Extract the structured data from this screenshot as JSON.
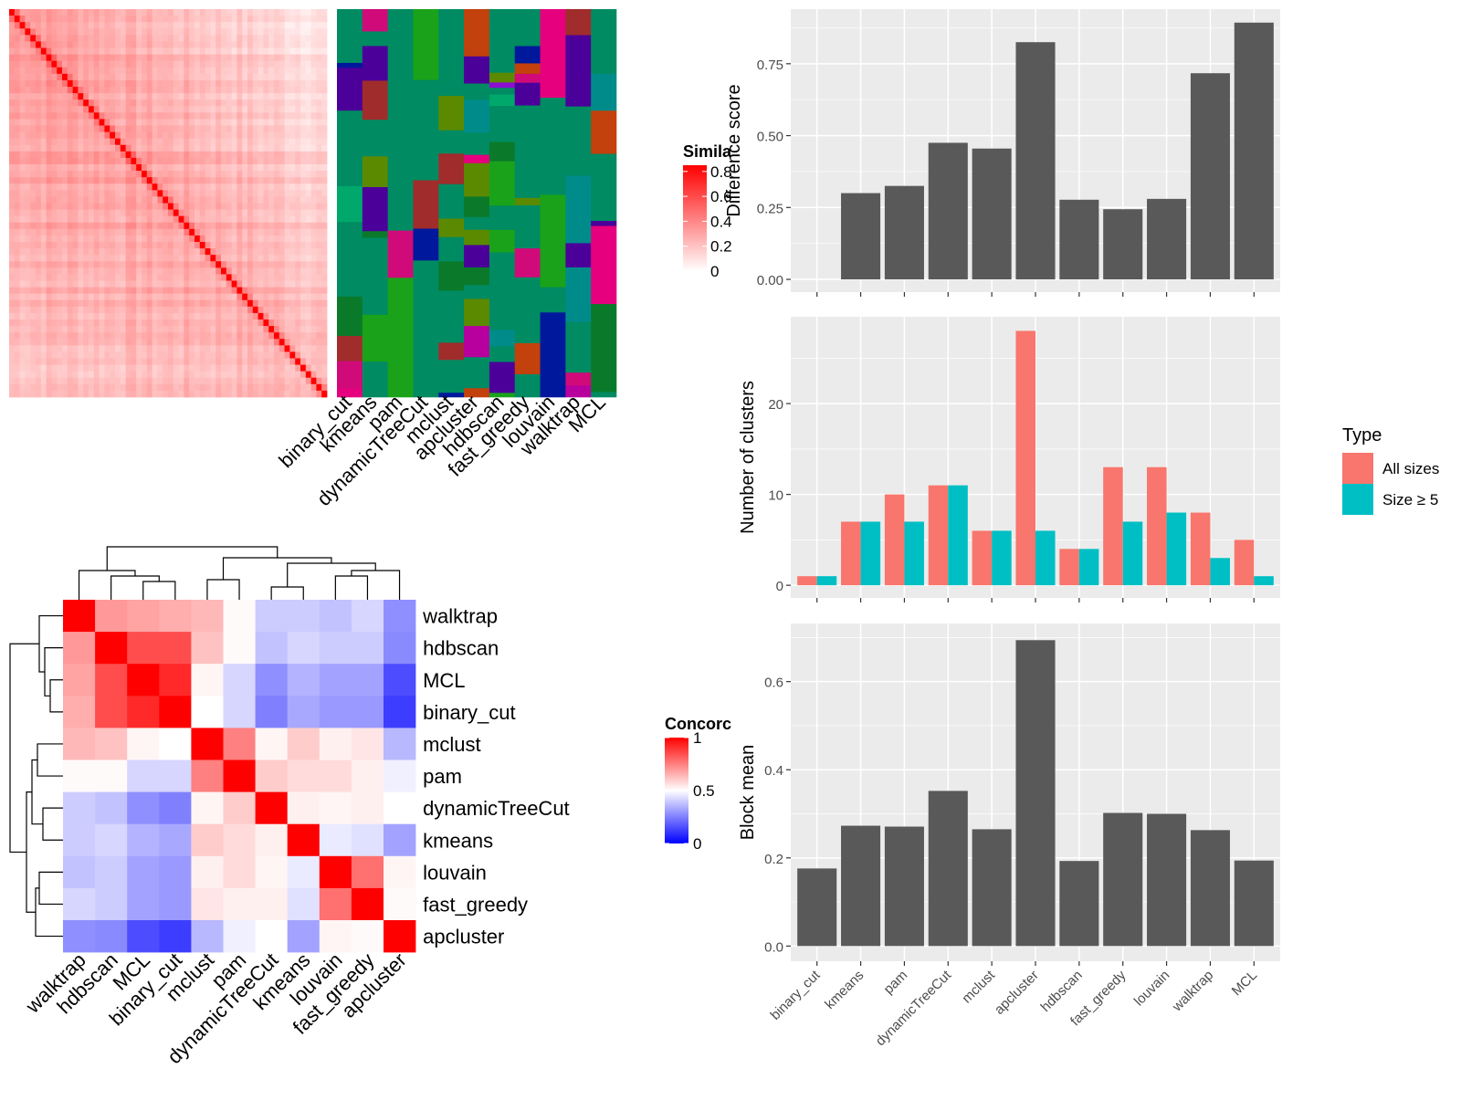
{
  "colors": {
    "panel_bg": "#ebebeb",
    "grid": "#ffffff",
    "bar_gray": "#595959",
    "all_sizes": "#f8766d",
    "size_ge5": "#00bfc4",
    "sim_high": "#ff0000",
    "sim_low": "#ffffff",
    "conc_high": "#ff0000",
    "conc_mid": "#ffffff",
    "conc_low": "#0000ff",
    "cluster_base": "#008b62"
  },
  "cluster_palette": [
    "#008b62",
    "#5b8a00",
    "#c2410c",
    "#e6007e",
    "#4b0099",
    "#0a7a2a",
    "#00a86b",
    "#b8009e",
    "#00189c",
    "#008b8b",
    "#1aa21a",
    "#a02c2c",
    "#8a0fcf",
    "#d10a7a"
  ],
  "similarity_heatmap": {
    "legend_title": "Simila",
    "legend_ticks": [
      "0.8",
      "0.6",
      "0.4",
      "0.2",
      "0"
    ],
    "legend_tick_values": [
      0.8,
      0.6,
      0.4,
      0.2,
      0.0
    ],
    "legend_range": [
      0,
      0.85
    ],
    "method_labels": [
      "binary_cut",
      "kmeans",
      "pam",
      "dynamicTreeCut",
      "mclust",
      "apcluster",
      "hdbscan",
      "fast_greedy",
      "louvain",
      "walktrap",
      "MCL"
    ]
  },
  "concordance_heatmap": {
    "legend_title": "Concorc",
    "legend_ticks": [
      "1",
      "0.5",
      "0"
    ],
    "legend_tick_values": [
      1,
      0.5,
      0
    ],
    "methods": [
      "walktrap",
      "hdbscan",
      "MCL",
      "binary_cut",
      "mclust",
      "pam",
      "dynamicTreeCut",
      "kmeans",
      "louvain",
      "fast_greedy",
      "apcluster"
    ],
    "matrix": [
      [
        1.0,
        0.7,
        0.68,
        0.66,
        0.64,
        0.51,
        0.4,
        0.4,
        0.38,
        0.42,
        0.28
      ],
      [
        0.7,
        1.0,
        0.85,
        0.85,
        0.62,
        0.51,
        0.38,
        0.42,
        0.4,
        0.4,
        0.27
      ],
      [
        0.68,
        0.85,
        1.0,
        0.92,
        0.52,
        0.42,
        0.28,
        0.35,
        0.32,
        0.32,
        0.15
      ],
      [
        0.66,
        0.85,
        0.92,
        1.0,
        0.5,
        0.42,
        0.25,
        0.33,
        0.3,
        0.3,
        0.12
      ],
      [
        0.64,
        0.62,
        0.52,
        0.5,
        1.0,
        0.75,
        0.52,
        0.6,
        0.53,
        0.55,
        0.36
      ],
      [
        0.51,
        0.51,
        0.42,
        0.42,
        0.75,
        1.0,
        0.6,
        0.57,
        0.57,
        0.53,
        0.47
      ],
      [
        0.4,
        0.38,
        0.28,
        0.25,
        0.52,
        0.6,
        1.0,
        0.53,
        0.52,
        0.53,
        0.5
      ],
      [
        0.4,
        0.42,
        0.35,
        0.33,
        0.6,
        0.57,
        0.53,
        1.0,
        0.46,
        0.44,
        0.32
      ],
      [
        0.38,
        0.4,
        0.32,
        0.3,
        0.53,
        0.57,
        0.52,
        0.46,
        1.0,
        0.78,
        0.52
      ],
      [
        0.42,
        0.4,
        0.32,
        0.3,
        0.55,
        0.53,
        0.53,
        0.44,
        0.78,
        1.0,
        0.51
      ],
      [
        0.28,
        0.27,
        0.15,
        0.12,
        0.36,
        0.47,
        0.5,
        0.32,
        0.52,
        0.51,
        1.0
      ]
    ]
  },
  "chart_data": [
    {
      "type": "bar",
      "ylabel": "Difference score",
      "categories": [
        "binary_cut",
        "kmeans",
        "pam",
        "dynamicTreeCut",
        "mclust",
        "apcluster",
        "hdbscan",
        "fast_greedy",
        "louvain",
        "walktrap",
        "MCL"
      ],
      "values": [
        0,
        0.3,
        0.325,
        0.475,
        0.455,
        0.825,
        0.277,
        0.244,
        0.28,
        0.717,
        0.893
      ],
      "ylim": [
        0,
        0.935
      ],
      "y_ticks": [
        0.0,
        0.25,
        0.5,
        0.75
      ],
      "y_tick_labels": [
        "0.00",
        "0.25",
        "0.50",
        "0.75"
      ]
    },
    {
      "type": "bar",
      "ylabel": "Number of clusters",
      "categories": [
        "binary_cut",
        "kmeans",
        "pam",
        "dynamicTreeCut",
        "mclust",
        "apcluster",
        "hdbscan",
        "fast_greedy",
        "louvain",
        "walktrap",
        "MCL"
      ],
      "legend": {
        "title": "Type",
        "position": "right"
      },
      "series": [
        {
          "name": "All sizes",
          "values": [
            1,
            7,
            10,
            11,
            6,
            28,
            4,
            13,
            13,
            8,
            5
          ]
        },
        {
          "name": "Size ≥ 5",
          "values": [
            1,
            7,
            7,
            11,
            6,
            6,
            4,
            7,
            8,
            3,
            1
          ]
        }
      ],
      "ylim": [
        0,
        29.4
      ],
      "y_ticks": [
        0,
        10,
        20
      ],
      "y_tick_labels": [
        "0",
        "10",
        "20"
      ]
    },
    {
      "type": "bar",
      "ylabel": "Block mean",
      "categories": [
        "binary_cut",
        "kmeans",
        "pam",
        "dynamicTreeCut",
        "mclust",
        "apcluster",
        "hdbscan",
        "fast_greedy",
        "louvain",
        "walktrap",
        "MCL"
      ],
      "values": [
        0.176,
        0.273,
        0.271,
        0.352,
        0.265,
        0.694,
        0.193,
        0.302,
        0.3,
        0.263,
        0.194
      ],
      "ylim": [
        0,
        0.728
      ],
      "y_ticks": [
        0.0,
        0.2,
        0.4,
        0.6
      ],
      "y_tick_labels": [
        "0.0",
        "0.2",
        "0.4",
        "0.6"
      ]
    }
  ]
}
